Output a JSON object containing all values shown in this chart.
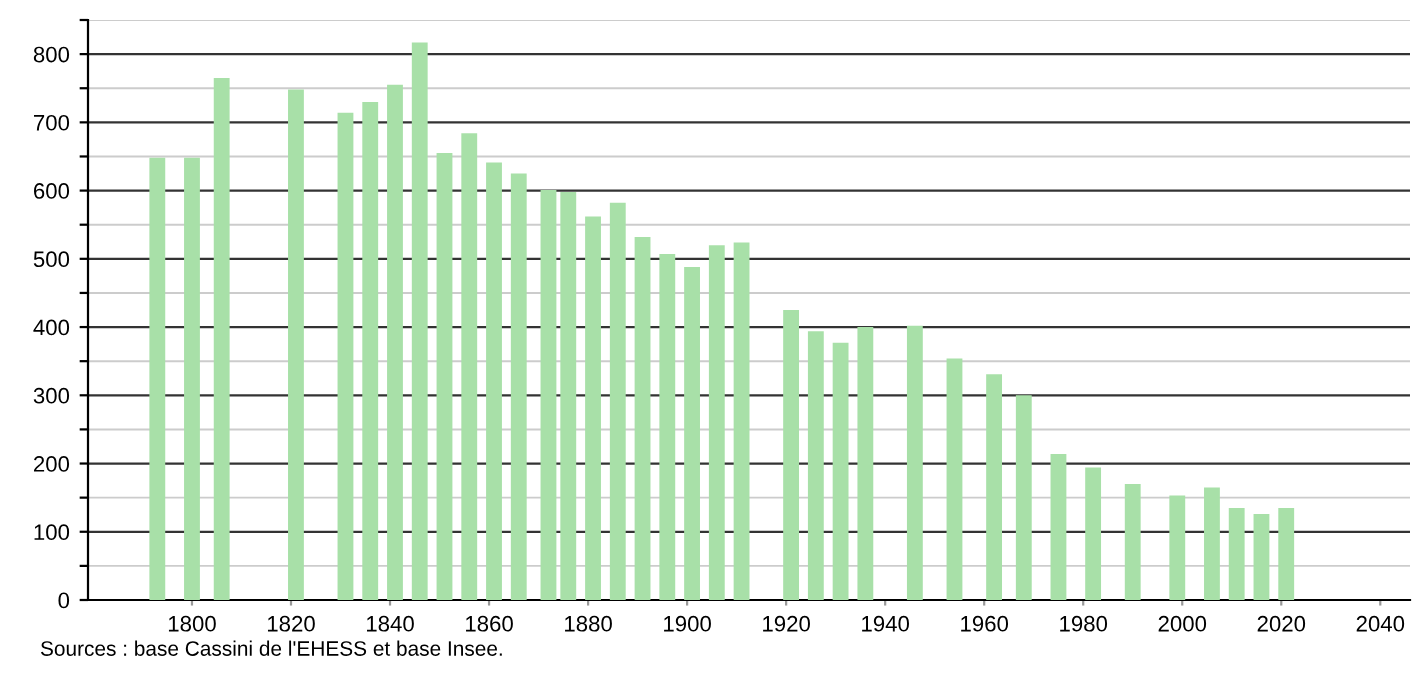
{
  "chart_data": {
    "type": "bar",
    "x": [
      1793,
      1800,
      1806,
      1821,
      1831,
      1836,
      1841,
      1846,
      1851,
      1856,
      1861,
      1866,
      1872,
      1876,
      1881,
      1886,
      1891,
      1896,
      1901,
      1906,
      1911,
      1921,
      1926,
      1931,
      1936,
      1946,
      1954,
      1962,
      1968,
      1975,
      1982,
      1990,
      1999,
      2006,
      2011,
      2016,
      2021
    ],
    "values": [
      648,
      648,
      765,
      748,
      714,
      730,
      755,
      817,
      655,
      684,
      641,
      625,
      601,
      598,
      562,
      582,
      532,
      507,
      488,
      520,
      524,
      425,
      394,
      377,
      400,
      402,
      354,
      331,
      300,
      214,
      194,
      170,
      153,
      165,
      135,
      126,
      135
    ],
    "color": "#a8e0a8",
    "xlim": [
      1779,
      2046
    ],
    "xticks": [
      1800,
      1820,
      1840,
      1860,
      1880,
      1900,
      1920,
      1940,
      1960,
      1980,
      2000,
      2020,
      2040
    ],
    "ylim": [
      0,
      850
    ],
    "yticks": [
      0,
      {
        "value": 50,
        "label": null
      },
      100,
      {
        "value": 150,
        "label": null
      },
      200,
      {
        "value": 250,
        "label": null
      },
      300,
      {
        "value": 350,
        "label": null
      },
      400,
      {
        "value": 450,
        "label": null
      },
      500,
      {
        "value": 550,
        "label": null
      },
      600,
      {
        "value": 650,
        "label": null
      },
      700,
      {
        "value": 750,
        "label": null
      },
      800,
      {
        "value": 850,
        "label": null
      }
    ],
    "grid": "y",
    "legend": false,
    "annotations": [
      "Sources : base Cassini de l'EHESS et base Insee."
    ]
  }
}
